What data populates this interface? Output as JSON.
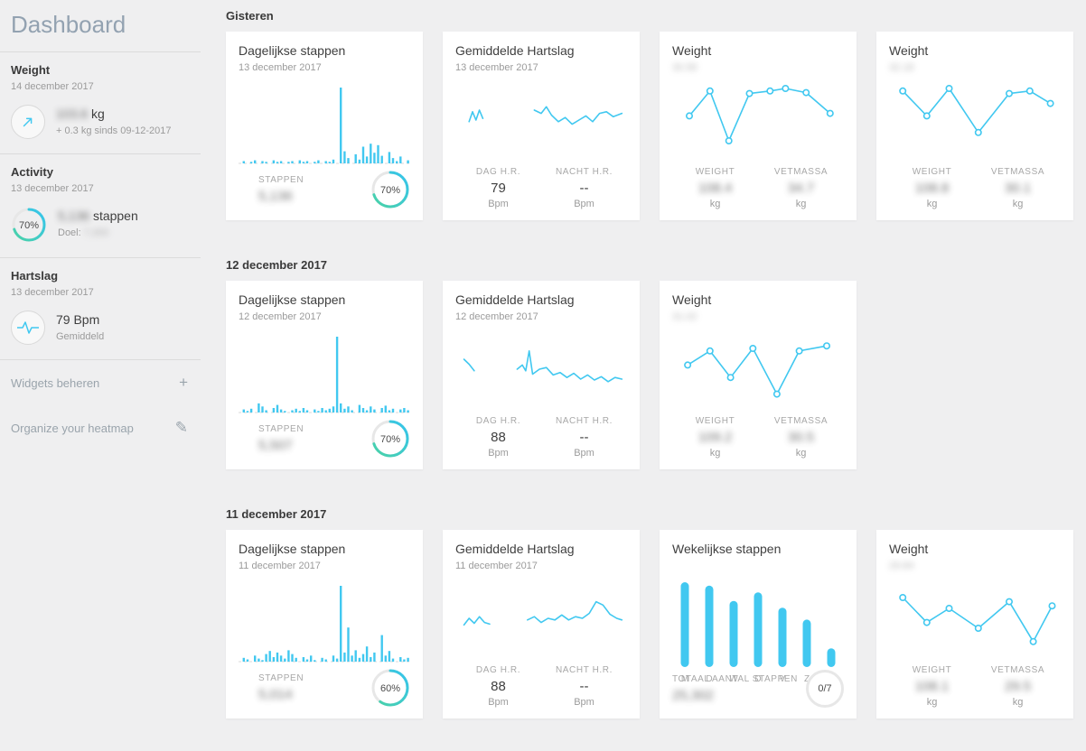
{
  "colors": {
    "accent": "#41c8f0",
    "ring_start": "#4ad2a5",
    "ring_end": "#35c4ef",
    "track": "#e7e7e7",
    "card_bg": "#ffffff",
    "page_bg": "#efeff0"
  },
  "icons": {
    "add": "+",
    "edit": "✎"
  },
  "sidebar": {
    "title": "Dashboard",
    "weight": {
      "label": "Weight",
      "date": "14 december 2017",
      "value": "103.6",
      "value_blurred": true,
      "unit": "kg",
      "delta": "+ 0.3 kg sinds 09-12-2017"
    },
    "activity": {
      "label": "Activity",
      "date": "13 december 2017",
      "percent": "70%",
      "percent_value": 70,
      "steps": "5,136",
      "steps_blurred": true,
      "steps_label": "stappen",
      "goal_label": "Doel:",
      "goal": "7,300",
      "goal_blurred": true
    },
    "heartrate": {
      "label": "Hartslag",
      "date": "13 december 2017",
      "value": "79 Bpm",
      "sub": "Gemiddeld"
    },
    "widgets_label": "Widgets beheren",
    "heatmap_label": "Organize your heatmap"
  },
  "sections": [
    {
      "header": "Gisteren",
      "cards": [
        {
          "type": "steps",
          "title": "Dagelijkse stappen",
          "date": "13 december 2017",
          "stat_label": "STAPPEN",
          "stat_value": "5,136",
          "stat_blurred": true,
          "percent": "70%",
          "percent_value": 70,
          "chart": {
            "type": "bars",
            "values": [
              0,
              3,
              0,
              2,
              4,
              0,
              3,
              2,
              0,
              4,
              2,
              3,
              0,
              2,
              3,
              0,
              4,
              2,
              3,
              0,
              2,
              4,
              0,
              3,
              2,
              5,
              0,
              100,
              16,
              7,
              0,
              12,
              5,
              22,
              9,
              26,
              14,
              24,
              10,
              0,
              15,
              7,
              3,
              9,
              0,
              4
            ]
          }
        },
        {
          "type": "hr",
          "title": "Gemiddelde Hartslag",
          "date": "13 december 2017",
          "cols": [
            {
              "label": "DAG H.R.",
              "value": "79",
              "unit": "Bpm"
            },
            {
              "label": "NACHT H.R.",
              "value": "--",
              "unit": "Bpm"
            }
          ],
          "chart": {
            "type": "line",
            "segments": [
              [
                [
                  8,
                  52
                ],
                [
                  10,
                  40
                ],
                [
                  12,
                  50
                ],
                [
                  14,
                  38
                ],
                [
                  16,
                  48
                ]
              ],
              [
                [
                  46,
                  38
                ],
                [
                  50,
                  42
                ],
                [
                  53,
                  34
                ],
                [
                  56,
                  44
                ],
                [
                  60,
                  52
                ],
                [
                  64,
                  47
                ],
                [
                  68,
                  55
                ],
                [
                  72,
                  50
                ],
                [
                  76,
                  45
                ],
                [
                  80,
                  52
                ],
                [
                  84,
                  42
                ],
                [
                  88,
                  40
                ],
                [
                  92,
                  46
                ],
                [
                  97,
                  42
                ]
              ]
            ]
          }
        },
        {
          "type": "weight",
          "title": "Weight",
          "date": "30.58",
          "date_blurred": true,
          "cols": [
            {
              "label": "WEIGHT",
              "value": "108.4",
              "unit": "kg",
              "blurred": true
            },
            {
              "label": "VETMASSA",
              "value": "34.7",
              "unit": "kg",
              "blurred": true
            }
          ],
          "chart": {
            "type": "dots",
            "points": [
              [
                10,
                45
              ],
              [
                22,
                15
              ],
              [
                33,
                75
              ],
              [
                45,
                18
              ],
              [
                57,
                15
              ],
              [
                66,
                12
              ],
              [
                78,
                17
              ],
              [
                92,
                42
              ]
            ]
          }
        },
        {
          "type": "weight",
          "title": "Weight",
          "date": "32.18",
          "date_blurred": true,
          "cols": [
            {
              "label": "WEIGHT",
              "value": "108.8",
              "unit": "kg",
              "blurred": true
            },
            {
              "label": "VETMASSA",
              "value": "30.1",
              "unit": "kg",
              "blurred": true
            }
          ],
          "chart": {
            "type": "dots",
            "points": [
              [
                8,
                15
              ],
              [
                22,
                45
              ],
              [
                35,
                12
              ],
              [
                52,
                65
              ],
              [
                70,
                18
              ],
              [
                82,
                15
              ],
              [
                94,
                30
              ]
            ]
          }
        }
      ]
    },
    {
      "header": "12 december 2017",
      "cards": [
        {
          "type": "steps",
          "title": "Dagelijkse stappen",
          "date": "12 december 2017",
          "stat_label": "STAPPEN",
          "stat_value": "5,507",
          "stat_blurred": true,
          "percent": "70%",
          "percent_value": 70,
          "chart": {
            "type": "bars",
            "values": [
              0,
              4,
              2,
              5,
              0,
              12,
              8,
              3,
              0,
              6,
              10,
              4,
              2,
              0,
              3,
              5,
              2,
              6,
              3,
              0,
              4,
              2,
              6,
              3,
              5,
              8,
              100,
              12,
              5,
              8,
              3,
              0,
              10,
              6,
              3,
              8,
              4,
              0,
              6,
              9,
              3,
              5,
              0,
              4,
              6,
              3
            ]
          }
        },
        {
          "type": "hr",
          "title": "Gemiddelde Hartslag",
          "date": "12 december 2017",
          "cols": [
            {
              "label": "DAG H.R.",
              "value": "88",
              "unit": "Bpm"
            },
            {
              "label": "NACHT H.R.",
              "value": "--",
              "unit": "Bpm"
            }
          ],
          "chart": {
            "type": "line",
            "segments": [
              [
                [
                  5,
                  38
                ],
                [
                  8,
                  44
                ],
                [
                  11,
                  52
                ]
              ],
              [
                [
                  36,
                  50
                ],
                [
                  39,
                  45
                ],
                [
                  41,
                  52
                ],
                [
                  43,
                  28
                ],
                [
                  45,
                  56
                ],
                [
                  49,
                  50
                ],
                [
                  53,
                  48
                ],
                [
                  57,
                  57
                ],
                [
                  61,
                  54
                ],
                [
                  65,
                  60
                ],
                [
                  69,
                  55
                ],
                [
                  73,
                  62
                ],
                [
                  77,
                  57
                ],
                [
                  81,
                  63
                ],
                [
                  85,
                  59
                ],
                [
                  89,
                  65
                ],
                [
                  93,
                  60
                ],
                [
                  97,
                  62
                ]
              ]
            ]
          }
        },
        {
          "type": "weight",
          "title": "Weight",
          "date": "31.02",
          "date_blurred": true,
          "cols": [
            {
              "label": "WEIGHT",
              "value": "109.2",
              "unit": "kg",
              "blurred": true
            },
            {
              "label": "VETMASSA",
              "value": "30.5",
              "unit": "kg",
              "blurred": true
            }
          ],
          "chart": {
            "type": "dots",
            "points": [
              [
                9,
                45
              ],
              [
                22,
                28
              ],
              [
                34,
                60
              ],
              [
                47,
                25
              ],
              [
                61,
                80
              ],
              [
                74,
                28
              ],
              [
                90,
                22
              ]
            ]
          }
        }
      ]
    },
    {
      "header": "11 december 2017",
      "cards": [
        {
          "type": "steps",
          "title": "Dagelijkse stappen",
          "date": "11 december 2017",
          "stat_label": "STAPPEN",
          "stat_value": "5,014",
          "stat_blurred": true,
          "percent": "60%",
          "percent_value": 60,
          "chart": {
            "type": "bars",
            "values": [
              0,
              5,
              3,
              0,
              8,
              4,
              2,
              10,
              14,
              6,
              12,
              8,
              4,
              15,
              10,
              5,
              0,
              6,
              3,
              8,
              2,
              0,
              5,
              3,
              0,
              8,
              4,
              100,
              12,
              45,
              8,
              15,
              5,
              10,
              20,
              6,
              12,
              0,
              35,
              8,
              14,
              4,
              0,
              6,
              3,
              5
            ]
          }
        },
        {
          "type": "hr",
          "title": "Gemiddelde Hartslag",
          "date": "11 december 2017",
          "cols": [
            {
              "label": "DAG H.R.",
              "value": "88",
              "unit": "Bpm"
            },
            {
              "label": "NACHT H.R.",
              "value": "--",
              "unit": "Bpm"
            }
          ],
          "chart": {
            "type": "line",
            "segments": [
              [
                [
                  5,
                  58
                ],
                [
                  8,
                  50
                ],
                [
                  11,
                  56
                ],
                [
                  14,
                  48
                ],
                [
                  17,
                  55
                ],
                [
                  20,
                  57
                ]
              ],
              [
                [
                  42,
                  52
                ],
                [
                  46,
                  48
                ],
                [
                  50,
                  55
                ],
                [
                  54,
                  50
                ],
                [
                  58,
                  52
                ],
                [
                  62,
                  46
                ],
                [
                  66,
                  52
                ],
                [
                  70,
                  48
                ],
                [
                  74,
                  50
                ],
                [
                  78,
                  44
                ],
                [
                  82,
                  30
                ],
                [
                  86,
                  34
                ],
                [
                  90,
                  45
                ],
                [
                  94,
                  50
                ],
                [
                  97,
                  52
                ]
              ]
            ]
          }
        },
        {
          "type": "weekly",
          "title": "Wekelijkse stappen",
          "date": "",
          "days": [
            "M",
            "D",
            "W",
            "D",
            "V",
            "Z",
            "Z"
          ],
          "stat_label": "TOTAAL AANTAL STAPPEN",
          "stat_value": "25,302",
          "stat_blurred": true,
          "badge": "0/7",
          "chart": {
            "type": "weekly",
            "values": [
              100,
              96,
              78,
              88,
              70,
              56,
              22
            ]
          }
        },
        {
          "type": "weight",
          "title": "Weight",
          "date": "29.84",
          "date_blurred": true,
          "cols": [
            {
              "label": "WEIGHT",
              "value": "108.1",
              "unit": "kg",
              "blurred": true
            },
            {
              "label": "VETMASSA",
              "value": "29.5",
              "unit": "kg",
              "blurred": true
            }
          ],
          "chart": {
            "type": "dots",
            "points": [
              [
                8,
                25
              ],
              [
                22,
                55
              ],
              [
                35,
                38
              ],
              [
                52,
                62
              ],
              [
                70,
                30
              ],
              [
                84,
                78
              ],
              [
                95,
                35
              ]
            ]
          }
        }
      ]
    }
  ]
}
